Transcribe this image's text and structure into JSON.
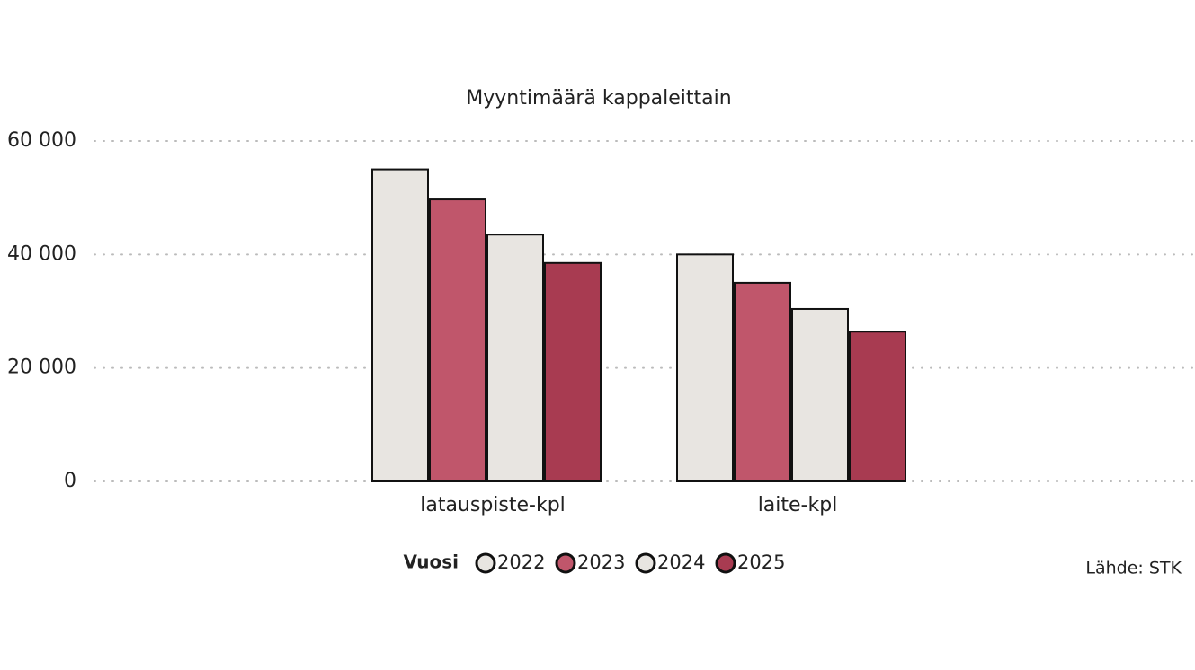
{
  "chart_data": {
    "type": "bar",
    "title": "Myyntimäärä kappaleittain",
    "categories": [
      "latauspiste-kpl",
      "laite-kpl"
    ],
    "series": [
      {
        "name": "2022",
        "color": "#e8e5e1",
        "values": [
          55000,
          40000
        ]
      },
      {
        "name": "2023",
        "color": "#c0566b",
        "values": [
          49700,
          35000
        ]
      },
      {
        "name": "2024",
        "color": "#e8e5e1",
        "values": [
          43500,
          30400
        ]
      },
      {
        "name": "2025",
        "color": "#a83b51",
        "values": [
          38500,
          26400
        ]
      }
    ],
    "legend_title": "Vuosi",
    "source": "Lähde: STK",
    "ylim": [
      0,
      60000
    ],
    "yticks": [
      0,
      {
        "value": 20000,
        "label": "20 000"
      },
      {
        "value": 40000,
        "label": "40 000"
      },
      {
        "value": 60000,
        "label": "60 000"
      }
    ],
    "grid": true
  }
}
